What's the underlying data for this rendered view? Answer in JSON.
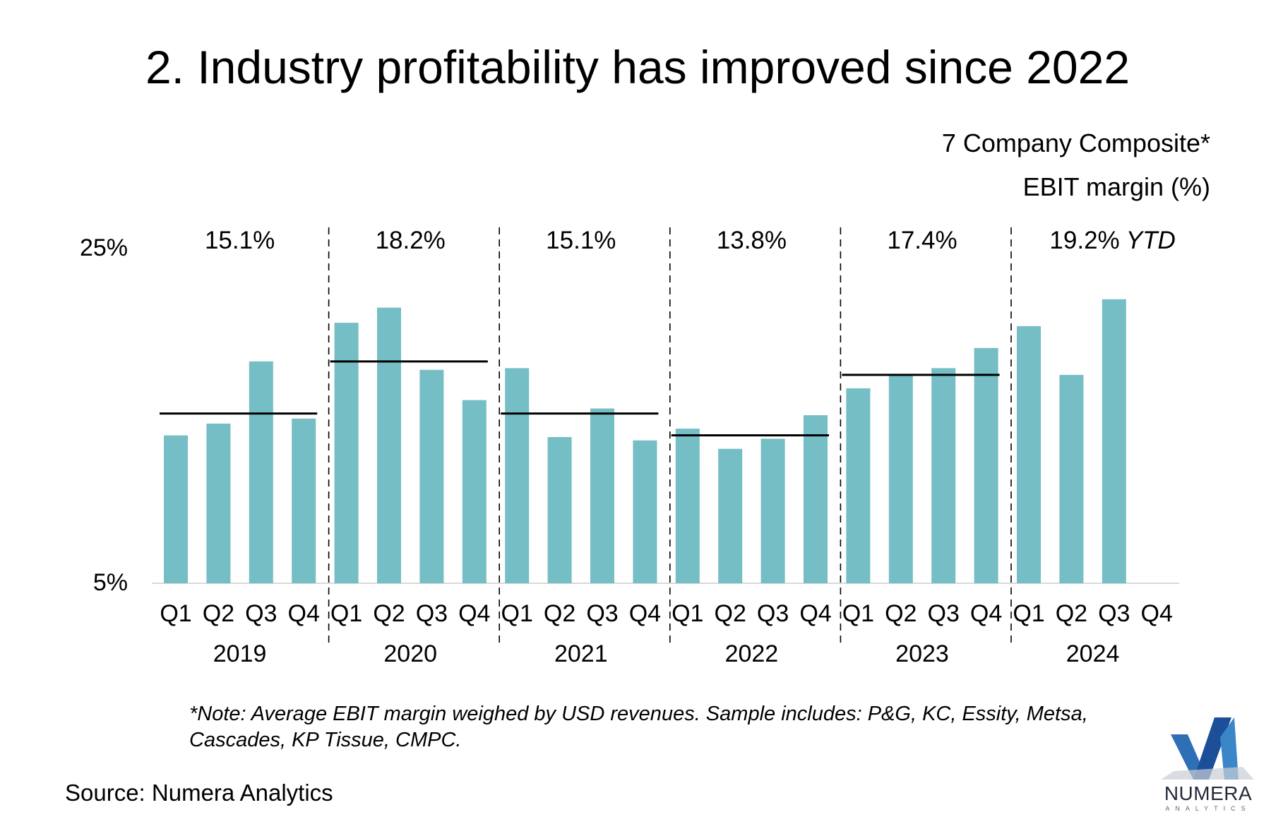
{
  "chart_data": {
    "type": "bar",
    "title": "2. Industry profitability has improved since 2022",
    "subtitle_lines": [
      "7 Company Composite*",
      "EBIT margin (%)"
    ],
    "ylim": [
      5,
      25
    ],
    "y_tick_labels": [
      "25%",
      "5%"
    ],
    "grid": false,
    "categories": [
      "Q1",
      "Q2",
      "Q3",
      "Q4",
      "Q1",
      "Q2",
      "Q3",
      "Q4",
      "Q1",
      "Q2",
      "Q3",
      "Q4",
      "Q1",
      "Q2",
      "Q3",
      "Q4",
      "Q1",
      "Q2",
      "Q3",
      "Q4",
      "Q1",
      "Q2",
      "Q3",
      "Q4"
    ],
    "years": [
      "2019",
      "2020",
      "2021",
      "2022",
      "2023",
      "2024"
    ],
    "values": [
      13.8,
      14.5,
      18.2,
      14.8,
      20.5,
      21.4,
      17.7,
      15.9,
      17.8,
      13.7,
      15.4,
      13.5,
      14.2,
      13.0,
      13.6,
      15.0,
      16.6,
      17.4,
      17.8,
      19.0,
      20.3,
      17.4,
      21.9,
      null
    ],
    "annual_averages": [
      15.1,
      18.2,
      15.1,
      13.8,
      17.4,
      19.2
    ],
    "annual_labels": [
      "15.1%",
      "18.2%",
      "15.1%",
      "13.8%",
      "17.4%",
      "19.2%"
    ],
    "ytd_suffix": "YTD",
    "bar_color": "#75bec5"
  },
  "note": "*Note: Average EBIT margin weighed by USD revenues. Sample includes: P&G, KC, Essity, Metsa, Cascades, KP Tissue, CMPC.",
  "source": "Source: Numera Analytics",
  "logo": {
    "word": "NUMERA",
    "sub": "ANALYTICS"
  }
}
